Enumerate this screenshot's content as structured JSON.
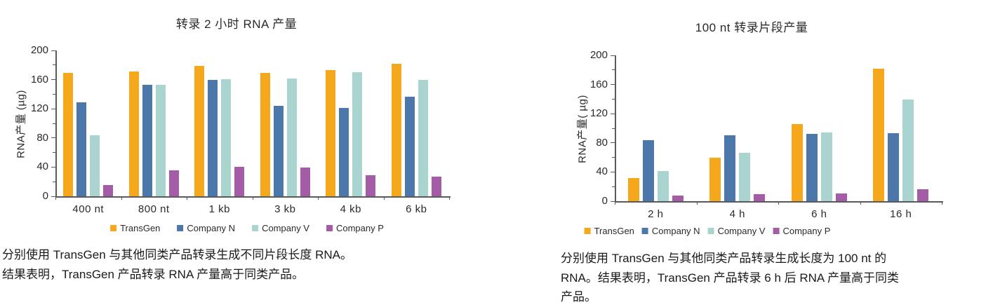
{
  "page": {
    "background": "#ffffff"
  },
  "colors": {
    "axis": "#58595B",
    "text": "#1a1a1a",
    "transgen_orange": "#F5A81C",
    "company_n_blue": "#4B77AB",
    "company_v_teal": "#A9D4CF",
    "company_p_purple": "#A55CA6"
  },
  "chart_data": [
    {
      "type": "bar",
      "title": "转录 2 小时 RNA 产量",
      "xlabel": "",
      "ylabel": "RNA产量 (µg)",
      "ylim": [
        0,
        200
      ],
      "yticks": [
        0,
        40,
        80,
        120,
        160,
        200
      ],
      "y_minor_interval": 20,
      "grid": false,
      "legend_position": "bottom",
      "categories": [
        "400 nt",
        "800 nt",
        "1 kb",
        "3 kb",
        "4 kb",
        "6 kb"
      ],
      "series": [
        {
          "name": "TransGen",
          "color": "#F5A81C",
          "values": [
            169,
            171,
            179,
            169,
            173,
            182
          ]
        },
        {
          "name": "Company N",
          "color": "#4B77AB",
          "values": [
            129,
            153,
            160,
            124,
            121,
            137
          ]
        },
        {
          "name": "Company V",
          "color": "#A9D4CF",
          "values": [
            84,
            153,
            161,
            162,
            170,
            160
          ]
        },
        {
          "name": "Company P",
          "color": "#A55CA6",
          "values": [
            15,
            36,
            40,
            39,
            29,
            27
          ]
        }
      ],
      "caption_lines": [
        "分别使用 TransGen 与其他同类产品转录生成不同片段长度 RNA。",
        "结果表明，TransGen 产品转录 RNA 产量高于同类产品。"
      ]
    },
    {
      "type": "bar",
      "title": "100 nt 转录片段产量",
      "xlabel": "",
      "ylabel": "RNA产量( µg)",
      "ylim": [
        0,
        200
      ],
      "yticks": [
        0,
        40,
        80,
        120,
        160,
        200
      ],
      "y_minor_interval": 20,
      "grid": false,
      "legend_position": "bottom",
      "categories": [
        "2 h",
        "4 h",
        "6 h",
        "16 h"
      ],
      "series": [
        {
          "name": "TransGen",
          "color": "#F5A81C",
          "values": [
            32,
            60,
            106,
            182
          ]
        },
        {
          "name": "Company N",
          "color": "#4B77AB",
          "values": [
            84,
            90,
            92,
            93
          ]
        },
        {
          "name": "Company V",
          "color": "#A9D4CF",
          "values": [
            41,
            66,
            94,
            139
          ]
        },
        {
          "name": "Company P",
          "color": "#A55CA6",
          "values": [
            8,
            10,
            11,
            16
          ]
        }
      ],
      "caption_lines": [
        "分别使用 TransGen 与其他同类产品转录生成长度为 100 nt 的",
        "RNA。结果表明，TransGen 产品转录 6 h 后 RNA 产量高于同类",
        "产品。"
      ]
    }
  ]
}
